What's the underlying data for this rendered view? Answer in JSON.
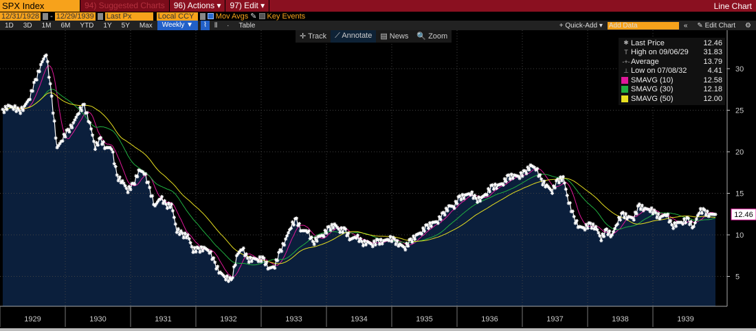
{
  "header": {
    "ticker": "SPX Index",
    "suggested": "94) Suggested Charts",
    "actions": "96) Actions ▾",
    "edit": "97) Edit ▾",
    "chart_type": "Line Chart"
  },
  "controls": {
    "start_date": "12/31/1928",
    "end_date": "12/29/1939",
    "field": "Last Px",
    "currency": "Local CCY",
    "mov_avgs": "Mov Avgs",
    "key_events": "Key Events"
  },
  "periods": [
    "1D",
    "3D",
    "1M",
    "6M",
    "YTD",
    "1Y",
    "5Y",
    "Max"
  ],
  "frequency": "Weekly ▼",
  "table": "Table",
  "quick_add": "+ Quick-Add ▾",
  "add_data_placeholder": "Add Data",
  "edit_chart": "✎ Edit Chart",
  "tools": [
    "✛ Track",
    "⟋ Annotate",
    "▤ News",
    "🔍 Zoom"
  ],
  "legend": [
    {
      "label": "Last Price",
      "value": "12.46",
      "key": "✱"
    },
    {
      "label": "High on 09/06/29",
      "value": "31.83",
      "key": "T"
    },
    {
      "label": "Average",
      "value": "13.79",
      "key": "-+-"
    },
    {
      "label": "Low on 07/08/32",
      "value": "4.41",
      "key": "⊥"
    },
    {
      "label": "SMAVG (10)",
      "value": "12.58",
      "color": "#e0189a"
    },
    {
      "label": "SMAVG (30)",
      "value": "12.18",
      "color": "#20b040"
    },
    {
      "label": "SMAVG (50)",
      "value": "12.00",
      "color": "#e8e020"
    }
  ],
  "last_price_label": "12.46",
  "chart_data": {
    "type": "line",
    "frequency": "weekly",
    "ylim": [
      1.5,
      34.5
    ],
    "yticks": [
      5,
      10,
      15,
      20,
      25,
      30
    ],
    "xticks": [
      "1929",
      "1930",
      "1931",
      "1932",
      "1933",
      "1934",
      "1935",
      "1936",
      "1937",
      "1938",
      "1939"
    ],
    "colors": {
      "price": "#ffffff",
      "fill": "#0b1f3c",
      "sma10": "#e0189a",
      "sma30": "#20b040",
      "sma50": "#e8e020"
    },
    "sma_windows": [
      10,
      30,
      50
    ],
    "series": [
      [
        "1929-01",
        24.9
      ],
      [
        "1929-02",
        25.6
      ],
      [
        "1929-03",
        25.3
      ],
      [
        "1929-04",
        24.8
      ],
      [
        "1929-05",
        25.5
      ],
      [
        "1929-06",
        26.5
      ],
      [
        "1929-07",
        28.5
      ],
      [
        "1929-08",
        30.5
      ],
      [
        "1929-09",
        31.83
      ],
      [
        "1929-10",
        26.5
      ],
      [
        "1929-11",
        20.5
      ],
      [
        "1929-12",
        21.5
      ],
      [
        "1930-01",
        22.5
      ],
      [
        "1930-02",
        23.5
      ],
      [
        "1930-03",
        24.8
      ],
      [
        "1930-04",
        25.5
      ],
      [
        "1930-05",
        23.5
      ],
      [
        "1930-06",
        20.5
      ],
      [
        "1930-07",
        21.5
      ],
      [
        "1930-08",
        20.5
      ],
      [
        "1930-09",
        20.5
      ],
      [
        "1930-10",
        17
      ],
      [
        "1930-11",
        16.5
      ],
      [
        "1930-12",
        15.3
      ],
      [
        "1931-01",
        16
      ],
      [
        "1931-02",
        17.8
      ],
      [
        "1931-03",
        17.5
      ],
      [
        "1931-04",
        15.5
      ],
      [
        "1931-05",
        13.5
      ],
      [
        "1931-06",
        14.5
      ],
      [
        "1931-07",
        13.5
      ],
      [
        "1931-08",
        13.7
      ],
      [
        "1931-09",
        10.5
      ],
      [
        "1931-10",
        10
      ],
      [
        "1931-11",
        10
      ],
      [
        "1931-12",
        8.1
      ],
      [
        "1932-01",
        8.2
      ],
      [
        "1932-02",
        8.5
      ],
      [
        "1932-03",
        8
      ],
      [
        "1932-04",
        6.5
      ],
      [
        "1932-05",
        5.5
      ],
      [
        "1932-06",
        4.8
      ],
      [
        "1932-07",
        4.41
      ],
      [
        "1932-08",
        7.5
      ],
      [
        "1932-09",
        8.4
      ],
      [
        "1932-10",
        7
      ],
      [
        "1932-11",
        7.2
      ],
      [
        "1932-12",
        7
      ],
      [
        "1933-01",
        7
      ],
      [
        "1933-02",
        6
      ],
      [
        "1933-03",
        6.2
      ],
      [
        "1933-04",
        8
      ],
      [
        "1933-05",
        9.5
      ],
      [
        "1933-06",
        11
      ],
      [
        "1933-07",
        11.8
      ],
      [
        "1933-08",
        10.5
      ],
      [
        "1933-09",
        10.5
      ],
      [
        "1933-10",
        9
      ],
      [
        "1933-11",
        9.8
      ],
      [
        "1933-12",
        10
      ],
      [
        "1934-01",
        10.8
      ],
      [
        "1934-02",
        11.3
      ],
      [
        "1934-03",
        10.5
      ],
      [
        "1934-04",
        10.5
      ],
      [
        "1934-05",
        9.5
      ],
      [
        "1934-06",
        9.8
      ],
      [
        "1934-07",
        9
      ],
      [
        "1934-08",
        9.2
      ],
      [
        "1934-09",
        8.8
      ],
      [
        "1934-10",
        9.2
      ],
      [
        "1934-11",
        9.3
      ],
      [
        "1934-12",
        9.5
      ],
      [
        "1935-01",
        9.3
      ],
      [
        "1935-02",
        8.9
      ],
      [
        "1935-03",
        8.4
      ],
      [
        "1935-04",
        9.3
      ],
      [
        "1935-05",
        10
      ],
      [
        "1935-06",
        10.3
      ],
      [
        "1935-07",
        11
      ],
      [
        "1935-08",
        11.5
      ],
      [
        "1935-09",
        11.6
      ],
      [
        "1935-10",
        12.5
      ],
      [
        "1935-11",
        13.5
      ],
      [
        "1935-12",
        13.4
      ],
      [
        "1936-01",
        14.5
      ],
      [
        "1936-02",
        14.8
      ],
      [
        "1936-03",
        15
      ],
      [
        "1936-04",
        14.2
      ],
      [
        "1936-05",
        14.5
      ],
      [
        "1936-06",
        15
      ],
      [
        "1936-07",
        15.8
      ],
      [
        "1936-08",
        16
      ],
      [
        "1936-09",
        16.2
      ],
      [
        "1936-10",
        17
      ],
      [
        "1936-11",
        17.2
      ],
      [
        "1936-12",
        17
      ],
      [
        "1937-01",
        17.5
      ],
      [
        "1937-02",
        18.4
      ],
      [
        "1937-03",
        18
      ],
      [
        "1937-04",
        16.5
      ],
      [
        "1937-05",
        16
      ],
      [
        "1937-06",
        15.2
      ],
      [
        "1937-07",
        16.5
      ],
      [
        "1937-08",
        17
      ],
      [
        "1937-09",
        14
      ],
      [
        "1937-10",
        12
      ],
      [
        "1937-11",
        11
      ],
      [
        "1937-12",
        10.8
      ],
      [
        "1938-01",
        11.2
      ],
      [
        "1938-02",
        11
      ],
      [
        "1938-03",
        9.5
      ],
      [
        "1938-04",
        10.5
      ],
      [
        "1938-05",
        10
      ],
      [
        "1938-06",
        11.5
      ],
      [
        "1938-07",
        12.5
      ],
      [
        "1938-08",
        12.2
      ],
      [
        "1938-09",
        12
      ],
      [
        "1938-10",
        13.5
      ],
      [
        "1938-11",
        13.2
      ],
      [
        "1938-12",
        13
      ],
      [
        "1939-01",
        12.5
      ],
      [
        "1939-02",
        12.2
      ],
      [
        "1939-03",
        12.5
      ],
      [
        "1939-04",
        11
      ],
      [
        "1939-05",
        11.5
      ],
      [
        "1939-06",
        11.5
      ],
      [
        "1939-07",
        11.8
      ],
      [
        "1939-08",
        11
      ],
      [
        "1939-09",
        12.8
      ],
      [
        "1939-10",
        12.8
      ],
      [
        "1939-11",
        12.5
      ],
      [
        "1939-12",
        12.46
      ]
    ]
  }
}
